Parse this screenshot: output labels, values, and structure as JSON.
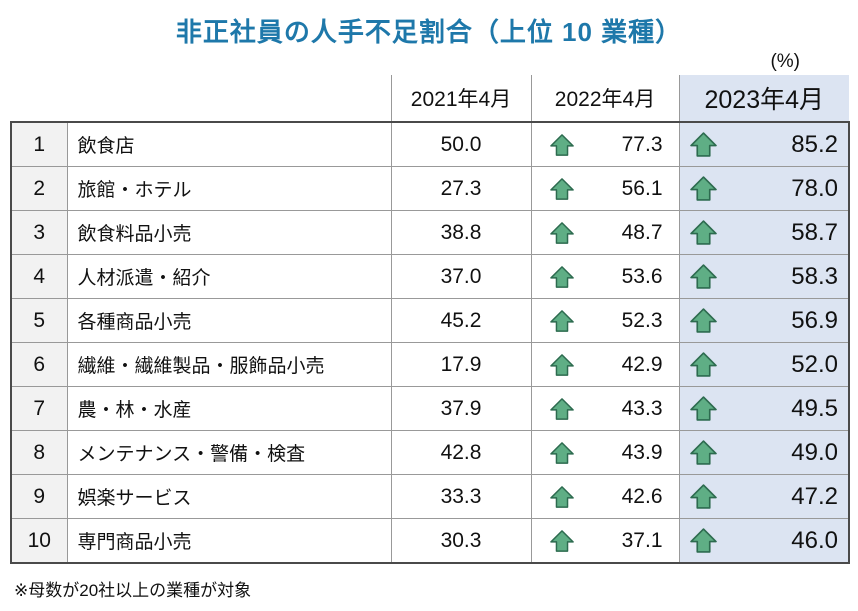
{
  "title": "非正社員の人手不足割合（上位 10 業種）",
  "unit_label": "(%)",
  "footnote": "※母数が20社以上の業種が対象",
  "colors": {
    "title_text": "#1e78aa",
    "highlight_bg": "#dce4f2",
    "arrow_fill": "#5fae85",
    "arrow_stroke": "#2d6b4f",
    "grid_line": "#999999",
    "frame_line": "#4a4a4a"
  },
  "chart_data": {
    "type": "table",
    "title": "非正社員の人手不足割合（上位10業種）",
    "unit": "%",
    "columns": [
      "2021年4月",
      "2022年4月",
      "2023年4月"
    ],
    "highlight_column": "2023年4月",
    "arrow_meaning": "年々増加（前年より上昇）",
    "rows": [
      {
        "rank": "1",
        "industry": "飲食店",
        "values": [
          "50.0",
          "77.3",
          "85.2"
        ]
      },
      {
        "rank": "2",
        "industry": "旅館・ホテル",
        "values": [
          "27.3",
          "56.1",
          "78.0"
        ]
      },
      {
        "rank": "3",
        "industry": "飲食料品小売",
        "values": [
          "38.8",
          "48.7",
          "58.7"
        ]
      },
      {
        "rank": "4",
        "industry": "人材派遣・紹介",
        "values": [
          "37.0",
          "53.6",
          "58.3"
        ]
      },
      {
        "rank": "5",
        "industry": "各種商品小売",
        "values": [
          "45.2",
          "52.3",
          "56.9"
        ]
      },
      {
        "rank": "6",
        "industry": "繊維・繊維製品・服飾品小売",
        "values": [
          "17.9",
          "42.9",
          "52.0"
        ]
      },
      {
        "rank": "7",
        "industry": "農・林・水産",
        "values": [
          "37.9",
          "43.3",
          "49.5"
        ]
      },
      {
        "rank": "8",
        "industry": "メンテナンス・警備・検査",
        "values": [
          "42.8",
          "43.9",
          "49.0"
        ]
      },
      {
        "rank": "9",
        "industry": "娯楽サービス",
        "values": [
          "33.3",
          "42.6",
          "47.2"
        ]
      },
      {
        "rank": "10",
        "industry": "専門商品小売",
        "values": [
          "30.3",
          "37.1",
          "46.0"
        ]
      }
    ]
  }
}
